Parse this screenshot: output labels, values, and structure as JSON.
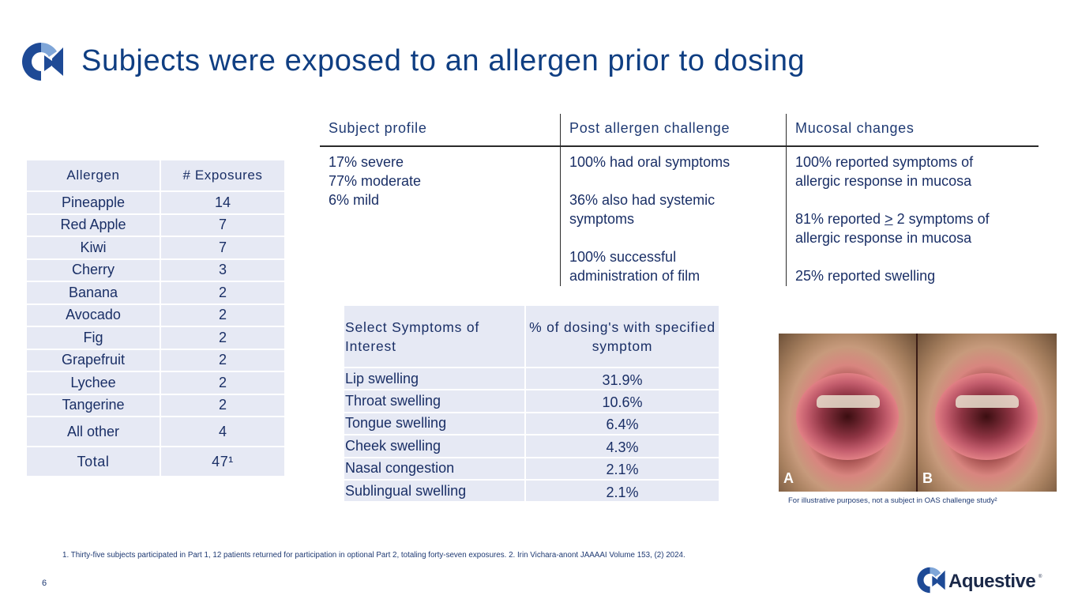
{
  "slide": {
    "title": "Subjects were exposed to an allergen prior to dosing",
    "page_number": "6",
    "footnote": "1. Thirty-five subjects participated in Part 1, 12 patients returned for participation in optional Part 2, totaling forty-seven exposures.  2. Irin Vichara-anont JAAAAI Volume 153, (2)  2024.",
    "colors": {
      "title": "#0f3e82",
      "table_fill": "#e6e9f4",
      "logo_blue": "#1e4a96",
      "logo_light": "#7fa6d8"
    }
  },
  "allergen_table": {
    "headers": [
      "Allergen",
      "# Exposures"
    ],
    "rows": [
      [
        "Pineapple",
        "14"
      ],
      [
        "Red Apple",
        "7"
      ],
      [
        "Kiwi",
        "7"
      ],
      [
        "Cherry",
        "3"
      ],
      [
        "Banana",
        "2"
      ],
      [
        "Avocado",
        "2"
      ],
      [
        "Fig",
        "2"
      ],
      [
        "Grapefruit",
        "2"
      ],
      [
        "Lychee",
        "2"
      ],
      [
        "Tangerine",
        "2"
      ],
      [
        "All other",
        "4"
      ]
    ],
    "total": [
      "Total",
      "47¹"
    ]
  },
  "profile_table": {
    "headers": [
      "Subject profile",
      "Post allergen challenge",
      "Mucosal changes"
    ],
    "col1": [
      "17% severe",
      "77% moderate",
      "6% mild"
    ],
    "col2": [
      "100%  had oral symptoms",
      "",
      "36% also had systemic",
      "symptoms",
      "",
      "100% successful",
      "administration of film"
    ],
    "col3_parts": {
      "l1": "100% reported symptoms of",
      "l2": "allergic response in mucosa",
      "l4_pre": "81% reported ",
      "l4_sym": ">",
      "l4_post": " 2 symptoms of",
      "l5": "allergic response in mucosa",
      "l7": "25% reported swelling"
    }
  },
  "symptom_table": {
    "header_col1": "Select Symptoms of Interest",
    "header_col2": "% of dosing's with specified symptom",
    "rows": [
      [
        "Lip swelling",
        "31.9%"
      ],
      [
        "Throat swelling",
        "10.6%"
      ],
      [
        "Tongue swelling",
        "6.4%"
      ],
      [
        "Cheek swelling",
        "4.3%"
      ],
      [
        "Nasal congestion",
        "2.1%"
      ],
      [
        "Sublingual swelling",
        "2.1%"
      ]
    ]
  },
  "photo": {
    "label_a": "A",
    "label_b": "B",
    "caption": "For illustrative purposes, not a subject in OAS challenge study²"
  },
  "brand": {
    "name": "Aquestive",
    "reg": "®"
  }
}
